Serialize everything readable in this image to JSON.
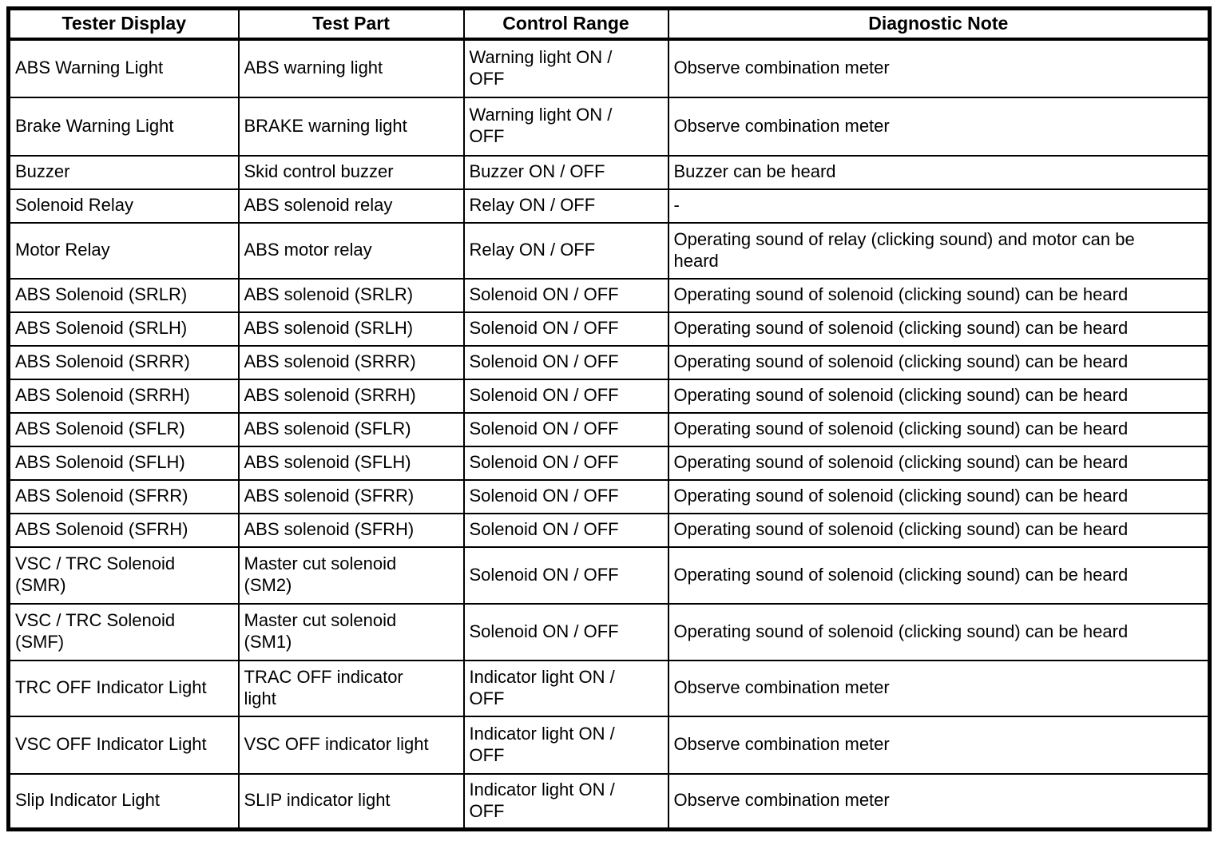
{
  "table": {
    "headers": [
      {
        "label": "Tester Display"
      },
      {
        "label": "Test Part"
      },
      {
        "label": "Control Range"
      },
      {
        "label": "Diagnostic Note"
      }
    ],
    "rows": [
      [
        "ABS Warning Light",
        "ABS warning light",
        "Warning light ON /\nOFF",
        "Observe combination meter"
      ],
      [
        "Brake Warning Light",
        "BRAKE warning light",
        "Warning light ON /\nOFF",
        "Observe combination meter"
      ],
      [
        "Buzzer",
        "Skid control buzzer",
        "Buzzer ON / OFF",
        "Buzzer can be heard"
      ],
      [
        "Solenoid Relay",
        "ABS solenoid relay",
        "Relay ON / OFF",
        "-"
      ],
      [
        "Motor Relay",
        "ABS motor relay",
        "Relay ON / OFF",
        "Operating sound of relay (clicking sound) and motor can be\nheard"
      ],
      [
        "ABS Solenoid (SRLR)",
        "ABS solenoid (SRLR)",
        "Solenoid ON / OFF",
        "Operating sound of solenoid (clicking sound) can be heard"
      ],
      [
        "ABS Solenoid (SRLH)",
        "ABS solenoid (SRLH)",
        "Solenoid ON / OFF",
        "Operating sound of solenoid (clicking sound) can be heard"
      ],
      [
        "ABS Solenoid (SRRR)",
        "ABS solenoid (SRRR)",
        "Solenoid ON / OFF",
        "Operating sound of solenoid (clicking sound) can be heard"
      ],
      [
        "ABS Solenoid (SRRH)",
        "ABS solenoid (SRRH)",
        "Solenoid ON / OFF",
        "Operating sound of solenoid (clicking sound) can be heard"
      ],
      [
        "ABS Solenoid (SFLR)",
        "ABS solenoid (SFLR)",
        "Solenoid ON / OFF",
        "Operating sound of solenoid (clicking sound) can be heard"
      ],
      [
        "ABS Solenoid (SFLH)",
        "ABS solenoid (SFLH)",
        "Solenoid ON / OFF",
        "Operating sound of solenoid (clicking sound) can be heard"
      ],
      [
        "ABS Solenoid (SFRR)",
        "ABS solenoid (SFRR)",
        "Solenoid ON / OFF",
        "Operating sound of solenoid (clicking sound) can be heard"
      ],
      [
        "ABS Solenoid (SFRH)",
        "ABS solenoid (SFRH)",
        "Solenoid ON / OFF",
        "Operating sound of solenoid (clicking sound) can be heard"
      ],
      [
        "VSC / TRC Solenoid\n(SMR)",
        "Master cut solenoid\n(SM2)",
        "Solenoid ON / OFF",
        "Operating sound of solenoid (clicking sound) can be heard"
      ],
      [
        "VSC / TRC Solenoid\n(SMF)",
        "Master cut solenoid\n(SM1)",
        "Solenoid ON / OFF",
        "Operating sound of solenoid (clicking sound) can be heard"
      ],
      [
        "TRC OFF Indicator Light",
        "TRAC OFF indicator\nlight",
        "Indicator light ON /\nOFF",
        "Observe combination meter"
      ],
      [
        "VSC OFF Indicator Light",
        "VSC OFF indicator light",
        "Indicator light ON /\nOFF",
        "Observe combination meter"
      ],
      [
        "Slip Indicator Light",
        "SLIP indicator light",
        "Indicator light ON /\nOFF",
        "Observe combination meter"
      ]
    ]
  }
}
